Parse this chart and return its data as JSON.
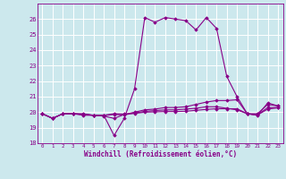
{
  "xlabel": "Windchill (Refroidissement éolien,°C)",
  "xlim": [
    -0.5,
    23.5
  ],
  "ylim": [
    18,
    27
  ],
  "yticks": [
    18,
    19,
    20,
    21,
    22,
    23,
    24,
    25,
    26
  ],
  "xticks": [
    0,
    1,
    2,
    3,
    4,
    5,
    6,
    7,
    8,
    9,
    10,
    11,
    12,
    13,
    14,
    15,
    16,
    17,
    18,
    19,
    20,
    21,
    22,
    23
  ],
  "bg_color": "#cce8ed",
  "line_color": "#880088",
  "grid_color": "#ffffff",
  "lines": [
    [
      19.9,
      19.6,
      19.9,
      19.9,
      19.9,
      19.8,
      19.8,
      18.5,
      19.6,
      21.5,
      26.1,
      25.8,
      26.1,
      26.0,
      25.9,
      25.3,
      26.1,
      25.4,
      22.3,
      21.0,
      19.9,
      19.8,
      20.6,
      20.4
    ],
    [
      19.9,
      19.6,
      19.9,
      19.9,
      19.8,
      19.8,
      19.75,
      19.6,
      19.85,
      20.0,
      20.15,
      20.2,
      20.3,
      20.3,
      20.35,
      20.5,
      20.65,
      20.75,
      20.75,
      20.8,
      19.9,
      19.9,
      20.5,
      20.4
    ],
    [
      19.9,
      19.6,
      19.9,
      19.9,
      19.85,
      19.8,
      19.78,
      19.85,
      19.82,
      19.95,
      20.05,
      20.1,
      20.15,
      20.15,
      20.2,
      20.25,
      20.35,
      20.35,
      20.25,
      20.15,
      19.9,
      19.82,
      20.3,
      20.3
    ],
    [
      19.9,
      19.6,
      19.9,
      19.9,
      19.87,
      19.8,
      19.8,
      19.9,
      19.88,
      19.92,
      20.0,
      20.02,
      20.04,
      20.04,
      20.06,
      20.12,
      20.18,
      20.22,
      20.22,
      20.22,
      19.9,
      19.82,
      20.2,
      20.28
    ]
  ]
}
